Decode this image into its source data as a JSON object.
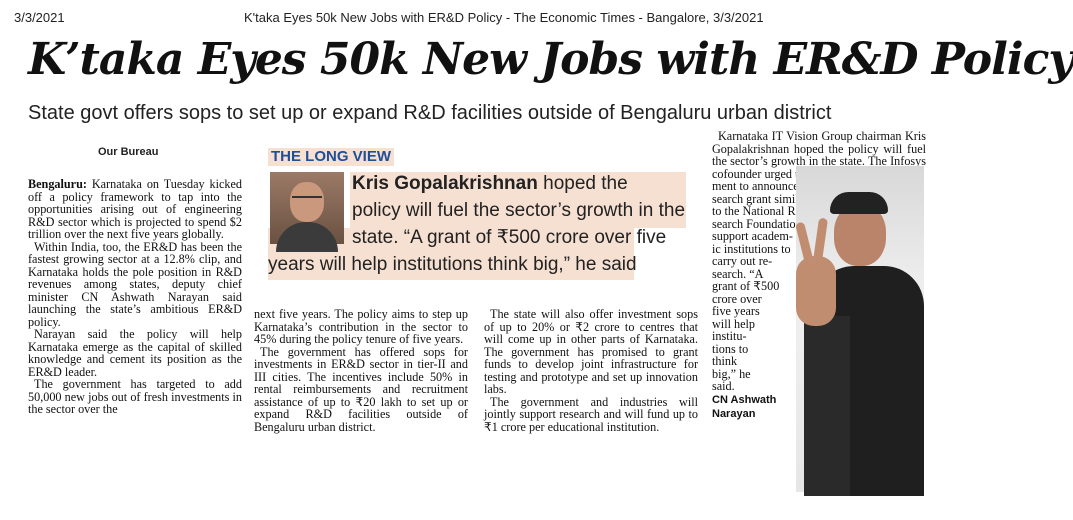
{
  "header": {
    "date": "3/3/2021",
    "title": "K'taka Eyes 50k New Jobs with ER&D Policy - The Economic Times - Bangalore, 3/3/2021"
  },
  "article": {
    "headline": "K’taka Eyes 50k New Jobs with ER&D Policy",
    "subheadline": "State govt offers sops to set up or expand R&D facilities outside of Bengaluru urban district",
    "byline": "Our Bureau",
    "col1": {
      "p1_lead": "Bengaluru:",
      "p1": " Karnataka on Tuesday kicked off a policy framework to tap into the opportunities arising out of engineering R&D sector which is projected to spend $2 trillion over the next five years globally.",
      "p2": "Within India, too, the ER&D has been the fastest growing sector at a 12.8% clip, and Karnataka holds the pole position in R&D revenues among states, deputy chief minister CN Ashwath Narayan said launching the state’s ambitious ER&D policy.",
      "p3": "Narayan said the policy will help Karnataka emerge as the capital of skilled knowledge and cement its position as the ER&D leader.",
      "p4": "The government has targeted to add 50,000 new jobs out of fresh investments in the sector over the"
    },
    "col2": {
      "p1": "next five years. The policy aims to step up Karnataka’s contribution in the sector to 45% during the policy tenure of five years.",
      "p2": "The government has offered sops for investments in ER&D sector in tier-II and III cities. The incentives include 50% in rental reimbursements and recruitment assistance of up to ₹20 lakh to set up or expand R&D facilities outside of Bengaluru urban district."
    },
    "col3": {
      "p1": "The state will also offer investment sops of up to 20% or ₹2 crore to centres that will come up in other parts of Karnataka. The government has promised to grant funds to develop joint infrastructure for testing and prototype and set up innovation labs.",
      "p2": "The government and industries will jointly support research and will fund up to ₹1 crore per educational institution."
    },
    "col4": {
      "p1": "Karnataka IT Vision Group chairman Kris Gopalakrishnan hoped the policy will fuel the sector’s growth in the state. The Infosys cofounder urged the govern-",
      "p2_lines": [
        "ment to announce a re-",
        "search grant similar",
        "to the National Re-",
        "search Foundation to",
        "support academ-",
        "ic institutions to",
        "carry out re-",
        "search. “A",
        "grant of ₹500",
        "crore over",
        "five years",
        "will help",
        "institu-",
        "tions to",
        "think",
        "big,” he",
        "said."
      ]
    },
    "photo_caption_line1": "CN Ashwath",
    "photo_caption_line2": "Narayan",
    "long_view": {
      "label": "THE LONG VIEW",
      "name": "Kris Gopalakrishnan",
      "line1_rest": " hoped the",
      "line2": "policy will fuel the sector’s growth in the",
      "line3": "state. “A grant of ₹500 crore over five",
      "line4": "years will help institutions think big,” he said"
    }
  }
}
